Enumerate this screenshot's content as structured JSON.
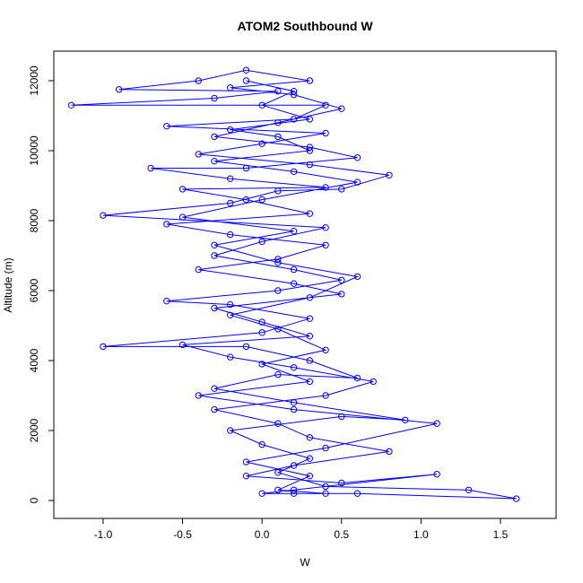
{
  "chart_data": {
    "type": "line",
    "title": "ATOM2 Southbound W",
    "xlabel": "W",
    "ylabel": "Altitude (m)",
    "color": "#0000ff",
    "markers": "open-circle",
    "x": [
      0.2,
      0.6,
      1.6,
      1.3,
      0.4,
      0.1,
      0.3,
      0.0,
      -0.2,
      0.5,
      0.9,
      0.2,
      -0.3,
      0.1,
      0.6,
      0.3,
      -0.1,
      -1.0,
      0.0,
      0.3,
      -0.2,
      -0.6,
      0.1,
      0.5,
      0.2,
      -0.3,
      0.0,
      0.4,
      -1.0,
      -0.2,
      0.1,
      0.5,
      0.8,
      0.3,
      -0.4,
      0.0,
      0.4,
      -0.6,
      0.2,
      0.4,
      -1.2,
      -0.3,
      0.1,
      -0.9,
      -0.4,
      -0.1,
      0.3,
      -0.2,
      0.2,
      0.5,
      0.1,
      -0.3,
      0.3,
      0.6,
      -0.1,
      -0.7,
      -0.2,
      0.4,
      -0.5,
      -0.1,
      0.3,
      -0.6,
      -0.2,
      0.4,
      0.1,
      -0.4,
      0.2,
      0.5,
      -0.3,
      0.0,
      0.3,
      -0.5,
      -0.2,
      0.2,
      0.7,
      0.4,
      -0.3,
      0.1,
      0.3,
      0.8,
      0.2,
      -0.1,
      0.5,
      1.1,
      0.2,
      0.0,
      0.4,
      0.1,
      0.3,
      -0.1,
      0.4,
      1.1,
      0.2,
      -0.4,
      0.3,
      0.0,
      0.4,
      0.1,
      -0.2,
      0.3,
      0.6,
      0.1,
      -0.3,
      0.2,
      -0.5,
      0.0,
      0.6,
      0.2,
      -0.3,
      0.3,
      0.1,
      -0.2,
      0.3,
      0.0,
      0.2,
      -0.1
    ],
    "values": [
      200,
      200,
      50,
      300,
      400,
      800,
      1200,
      1600,
      2000,
      2400,
      2300,
      2800,
      3200,
      3600,
      3500,
      4000,
      4400,
      4400,
      4800,
      5200,
      5600,
      5700,
      6000,
      6300,
      6600,
      7000,
      7400,
      7800,
      8150,
      8500,
      8850,
      8900,
      9300,
      9600,
      9900,
      10200,
      10500,
      10700,
      10900,
      11300,
      11300,
      11500,
      11700,
      11750,
      12000,
      12300,
      12000,
      11800,
      11600,
      11200,
      10800,
      10400,
      10100,
      9800,
      9500,
      9500,
      9200,
      8950,
      8900,
      8600,
      8200,
      7900,
      7600,
      7300,
      6900,
      6600,
      6200,
      5900,
      5500,
      5100,
      4700,
      4450,
      4100,
      3800,
      3400,
      3000,
      2600,
      2200,
      1800,
      1400,
      1000,
      700,
      500,
      750,
      300,
      200,
      200,
      300,
      700,
      1100,
      1500,
      2200,
      2600,
      3000,
      3400,
      3900,
      4300,
      4900,
      5300,
      5800,
      6400,
      6800,
      7300,
      7700,
      8100,
      8600,
      9100,
      9400,
      9700,
      10000,
      10400,
      10600,
      10900,
      11300,
      11700,
      12000
    ],
    "xlim": [
      -1.31,
      1.85
    ],
    "ylim": [
      -513,
      12846
    ],
    "xticks": [
      {
        "value": -1.0,
        "label": "-1.0"
      },
      {
        "value": -0.5,
        "label": "-0.5"
      },
      {
        "value": 0.0,
        "label": "0.0"
      },
      {
        "value": 0.5,
        "label": "0.5"
      },
      {
        "value": 1.0,
        "label": "1.0"
      },
      {
        "value": 1.5,
        "label": "1.5"
      }
    ],
    "yticks": [
      0,
      2000,
      4000,
      6000,
      8000,
      10000,
      12000
    ]
  }
}
